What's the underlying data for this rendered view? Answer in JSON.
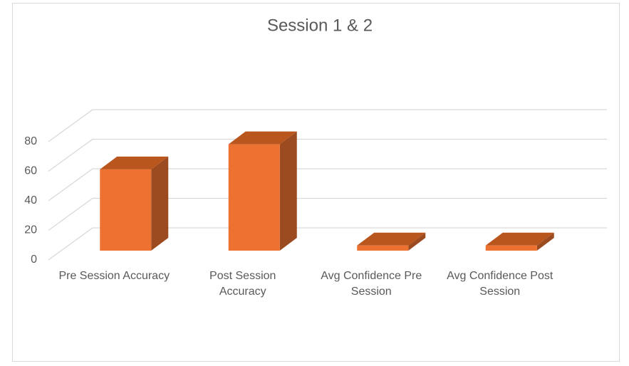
{
  "chart_data": {
    "type": "bar3d",
    "title": "Session 1 & 2",
    "categories": [
      "Pre Session Accuracy",
      "Post Session Accuracy",
      "Avg Confidence Pre Session",
      "Avg Confidence Post Session"
    ],
    "values": [
      55,
      72,
      3.5,
      3.5
    ],
    "color": "#ed7131",
    "ylim": [
      0,
      80
    ],
    "yticks": [
      0,
      20,
      40,
      60,
      80
    ],
    "grid": true
  }
}
